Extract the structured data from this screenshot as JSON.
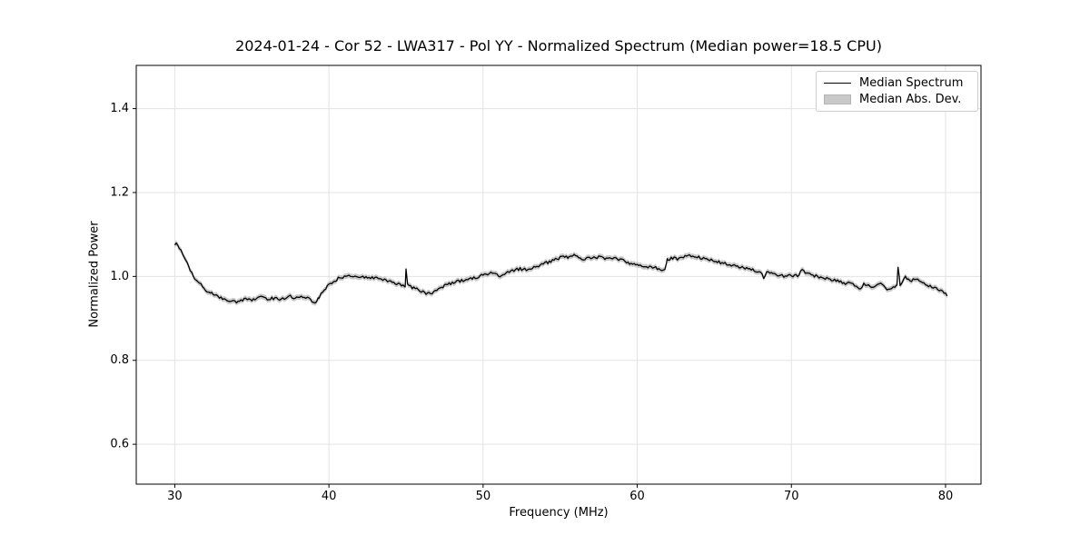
{
  "colors": {
    "background": "#ffffff",
    "grid": "#e3e3e3",
    "spine": "#000000",
    "text": "#000000",
    "line": "#000000",
    "band": "#c9c9c9"
  },
  "chart_data": {
    "type": "line",
    "title": "2024-01-24 - Cor 52 - LWA317 - Pol YY - Normalized Spectrum (Median power=18.5 CPU)",
    "xlabel": "Frequency (MHz)",
    "ylabel": "Normalized Power",
    "xlim": [
      27.5,
      82.3
    ],
    "ylim": [
      0.505,
      1.503
    ],
    "xticks": {
      "values": [
        30,
        40,
        50,
        60,
        70,
        80
      ],
      "labels": [
        "30",
        "40",
        "50",
        "60",
        "70",
        "80"
      ]
    },
    "yticks": {
      "values": [
        0.6,
        0.8,
        1.0,
        1.2,
        1.4
      ],
      "labels": [
        "0.6",
        "0.8",
        "1.0",
        "1.2",
        "1.4"
      ]
    },
    "grid": true,
    "legend": {
      "position": "upper right",
      "entries": [
        {
          "label": "Median Spectrum",
          "marker": "line",
          "color": "#000000"
        },
        {
          "label": "Median Abs. Dev.",
          "marker": "patch",
          "color": "#c9c9c9"
        }
      ]
    },
    "noise_amplitude": 0.0035,
    "band_halfwidth": 0.0065,
    "series": [
      {
        "name": "Median Spectrum",
        "color": "#000000",
        "points": [
          [
            30.0,
            1.074
          ],
          [
            30.1,
            1.082
          ],
          [
            30.25,
            1.071
          ],
          [
            30.4,
            1.064
          ],
          [
            30.6,
            1.049
          ],
          [
            30.8,
            1.034
          ],
          [
            31.0,
            1.014
          ],
          [
            31.2,
            1.0
          ],
          [
            31.5,
            0.988
          ],
          [
            31.8,
            0.976
          ],
          [
            32.0,
            0.968
          ],
          [
            32.3,
            0.962
          ],
          [
            32.6,
            0.955
          ],
          [
            33.0,
            0.949
          ],
          [
            33.3,
            0.944
          ],
          [
            33.6,
            0.941
          ],
          [
            34.0,
            0.94
          ],
          [
            34.3,
            0.941
          ],
          [
            34.6,
            0.947
          ],
          [
            35.0,
            0.944
          ],
          [
            35.3,
            0.949
          ],
          [
            35.6,
            0.951
          ],
          [
            36.0,
            0.946
          ],
          [
            36.4,
            0.948
          ],
          [
            36.8,
            0.946
          ],
          [
            37.2,
            0.95
          ],
          [
            37.5,
            0.953
          ],
          [
            37.8,
            0.948
          ],
          [
            38.2,
            0.95
          ],
          [
            38.6,
            0.95
          ],
          [
            38.9,
            0.941
          ],
          [
            39.1,
            0.934
          ],
          [
            39.35,
            0.95
          ],
          [
            39.6,
            0.963
          ],
          [
            39.8,
            0.972
          ],
          [
            40.0,
            0.98
          ],
          [
            40.3,
            0.986
          ],
          [
            40.6,
            0.995
          ],
          [
            41.0,
            0.999
          ],
          [
            41.2,
            1.002
          ],
          [
            41.5,
            0.998
          ],
          [
            41.8,
            1.0
          ],
          [
            42.1,
            0.997
          ],
          [
            42.4,
            0.999
          ],
          [
            42.7,
            0.996
          ],
          [
            43.0,
            0.997
          ],
          [
            43.3,
            0.995
          ],
          [
            43.6,
            0.992
          ],
          [
            44.0,
            0.988
          ],
          [
            44.4,
            0.984
          ],
          [
            44.7,
            0.98
          ],
          [
            44.95,
            0.977
          ],
          [
            45.0,
            1.019
          ],
          [
            45.1,
            0.979
          ],
          [
            45.4,
            0.974
          ],
          [
            45.7,
            0.969
          ],
          [
            46.0,
            0.964
          ],
          [
            46.3,
            0.96
          ],
          [
            46.6,
            0.958
          ],
          [
            46.9,
            0.966
          ],
          [
            47.2,
            0.973
          ],
          [
            47.5,
            0.978
          ],
          [
            47.8,
            0.983
          ],
          [
            48.1,
            0.985
          ],
          [
            48.4,
            0.988
          ],
          [
            48.7,
            0.99
          ],
          [
            49.0,
            0.993
          ],
          [
            49.4,
            0.996
          ],
          [
            49.7,
            1.0
          ],
          [
            50.0,
            1.003
          ],
          [
            50.4,
            1.007
          ],
          [
            50.8,
            1.01
          ],
          [
            51.1,
            0.998
          ],
          [
            51.4,
            1.008
          ],
          [
            51.7,
            1.012
          ],
          [
            52.0,
            1.015
          ],
          [
            52.4,
            1.018
          ],
          [
            52.8,
            1.016
          ],
          [
            53.2,
            1.021
          ],
          [
            53.6,
            1.026
          ],
          [
            54.0,
            1.031
          ],
          [
            54.4,
            1.036
          ],
          [
            54.8,
            1.041
          ],
          [
            55.2,
            1.048
          ],
          [
            55.55,
            1.044
          ],
          [
            55.9,
            1.053
          ],
          [
            56.2,
            1.045
          ],
          [
            56.5,
            1.042
          ],
          [
            56.9,
            1.046
          ],
          [
            57.3,
            1.044
          ],
          [
            57.7,
            1.047
          ],
          [
            58.0,
            1.042
          ],
          [
            58.4,
            1.045
          ],
          [
            58.8,
            1.04
          ],
          [
            59.2,
            1.036
          ],
          [
            59.6,
            1.03
          ],
          [
            60.0,
            1.028
          ],
          [
            60.4,
            1.024
          ],
          [
            60.8,
            1.022
          ],
          [
            61.2,
            1.02
          ],
          [
            61.5,
            1.017
          ],
          [
            61.8,
            1.014
          ],
          [
            61.95,
            1.04
          ],
          [
            62.3,
            1.044
          ],
          [
            62.7,
            1.042
          ],
          [
            63.0,
            1.047
          ],
          [
            63.4,
            1.051
          ],
          [
            63.7,
            1.048
          ],
          [
            64.0,
            1.046
          ],
          [
            64.4,
            1.042
          ],
          [
            64.8,
            1.038
          ],
          [
            65.2,
            1.035
          ],
          [
            65.6,
            1.031
          ],
          [
            66.0,
            1.028
          ],
          [
            66.4,
            1.026
          ],
          [
            66.8,
            1.022
          ],
          [
            67.2,
            1.018
          ],
          [
            67.6,
            1.014
          ],
          [
            68.0,
            1.011
          ],
          [
            68.2,
            0.996
          ],
          [
            68.4,
            1.009
          ],
          [
            68.8,
            1.006
          ],
          [
            69.2,
            1.003
          ],
          [
            69.6,
            1.001
          ],
          [
            70.0,
            1.003
          ],
          [
            70.4,
            1.001
          ],
          [
            70.7,
            1.017
          ],
          [
            71.0,
            1.008
          ],
          [
            71.4,
            1.003
          ],
          [
            71.8,
            0.999
          ],
          [
            72.2,
            0.996
          ],
          [
            72.6,
            0.991
          ],
          [
            73.0,
            0.989
          ],
          [
            73.4,
            0.985
          ],
          [
            73.8,
            0.983
          ],
          [
            74.2,
            0.979
          ],
          [
            74.4,
            0.971
          ],
          [
            74.7,
            0.981
          ],
          [
            75.0,
            0.977
          ],
          [
            75.4,
            0.975
          ],
          [
            75.8,
            0.981
          ],
          [
            76.1,
            0.972
          ],
          [
            76.4,
            0.968
          ],
          [
            76.7,
            0.975
          ],
          [
            76.85,
            0.977
          ],
          [
            76.92,
            1.024
          ],
          [
            77.05,
            0.98
          ],
          [
            77.4,
            0.999
          ],
          [
            77.7,
            0.989
          ],
          [
            78.0,
            0.996
          ],
          [
            78.3,
            0.988
          ],
          [
            78.6,
            0.982
          ],
          [
            79.0,
            0.978
          ],
          [
            79.4,
            0.973
          ],
          [
            79.7,
            0.966
          ],
          [
            80.0,
            0.958
          ],
          [
            80.1,
            0.953
          ]
        ]
      }
    ]
  }
}
